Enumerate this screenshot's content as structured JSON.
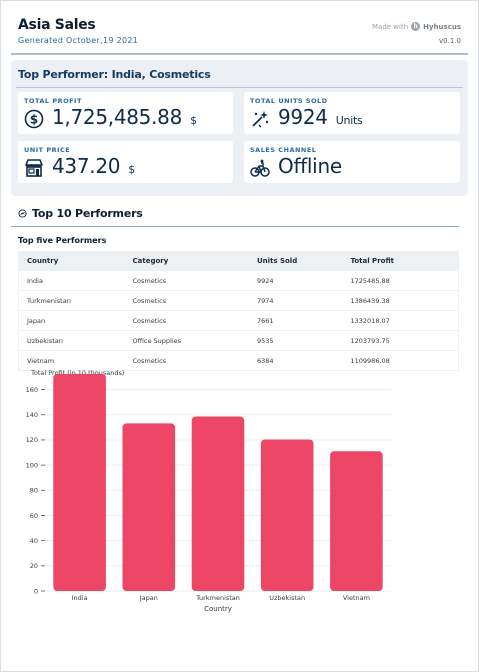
{
  "header": {
    "title": "Asia Sales",
    "subtitle": "Generated October,19 2021",
    "made_with": "Made with",
    "brand": "Hyhuscus",
    "version": "v0.1.0"
  },
  "top_performer": {
    "title": "Top Performer: India, Cosmetics",
    "cards": {
      "total_profit": {
        "label": "TOTAL PROFIT",
        "value": "1,725,485.88",
        "unit": "$",
        "icon": "dollar-coin-icon"
      },
      "total_units": {
        "label": "TOTAL UNITS SOLD",
        "value": "9924",
        "unit": "Units",
        "icon": "sparkle-magic-icon"
      },
      "unit_price": {
        "label": "UNIT PRICE",
        "value": "437.20",
        "unit": "$",
        "icon": "storefront-icon"
      },
      "sales_channel": {
        "label": "SALES CHANNEL",
        "value": "Offline",
        "unit": "",
        "icon": "bicycle-icon"
      }
    }
  },
  "top10": {
    "title": "Top 10 Performers",
    "icon": "circle-chart-icon",
    "table_title": "Top five Performers",
    "columns": [
      "Country",
      "Category",
      "Units Sold",
      "Total Profit"
    ],
    "rows": [
      [
        "India",
        "Cosmetics",
        "9924",
        "1725485.88"
      ],
      [
        "Turkmenistan",
        "Cosmetics",
        "7974",
        "1386439.38"
      ],
      [
        "Japan",
        "Cosmetics",
        "7661",
        "1332018.07"
      ],
      [
        "Uzbekistan",
        "Office Supplies",
        "9535",
        "1203793.75"
      ],
      [
        "Vietnam",
        "Cosmetics",
        "6384",
        "1109986.08"
      ]
    ]
  },
  "colors": {
    "bar": "#ec4566",
    "accent": "#2b6aa6",
    "panel_bg": "#eceff3"
  },
  "chart_data": {
    "type": "bar",
    "title": "",
    "ylabel": "Total Profit (in 10 thousands)",
    "xlabel": "Country",
    "categories": [
      "India",
      "Japan",
      "Turkmenistan",
      "Uzbekistan",
      "Vietnam"
    ],
    "values": [
      172.5,
      133.2,
      138.6,
      120.4,
      111.0
    ],
    "ylim": [
      0,
      170
    ],
    "yticks": [
      0,
      20,
      40,
      60,
      80,
      100,
      120,
      140,
      160
    ],
    "grid": true
  }
}
